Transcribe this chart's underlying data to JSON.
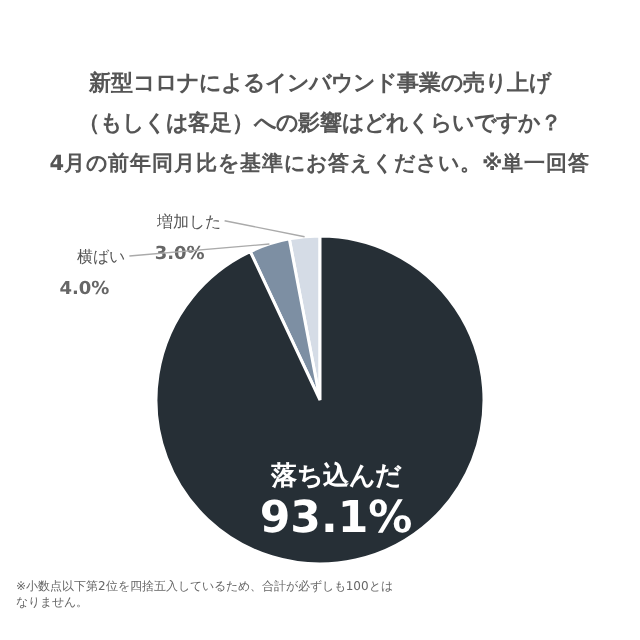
{
  "chart_data": {
    "type": "pie",
    "title": "新型コロナによるインバウンド事業の売り上げ（もしくは客足）への影響はどれくらいですか？",
    "subtitle": "4月の前年同月比を基準にお答えください。※単一回答",
    "categories": [
      "増加した",
      "横ばい",
      "落ち込んだ"
    ],
    "values": [
      3.0,
      4.0,
      93.1
    ],
    "colors": [
      "#d5dce6",
      "#7d8fa3",
      "#262f36"
    ],
    "value_labels": [
      "3.0%",
      "4.0%",
      "93.1%"
    ],
    "annotations": [
      "※小数点以下第2位を四捨五入しているため、合計が必ずしも100とはなりません。"
    ]
  }
}
